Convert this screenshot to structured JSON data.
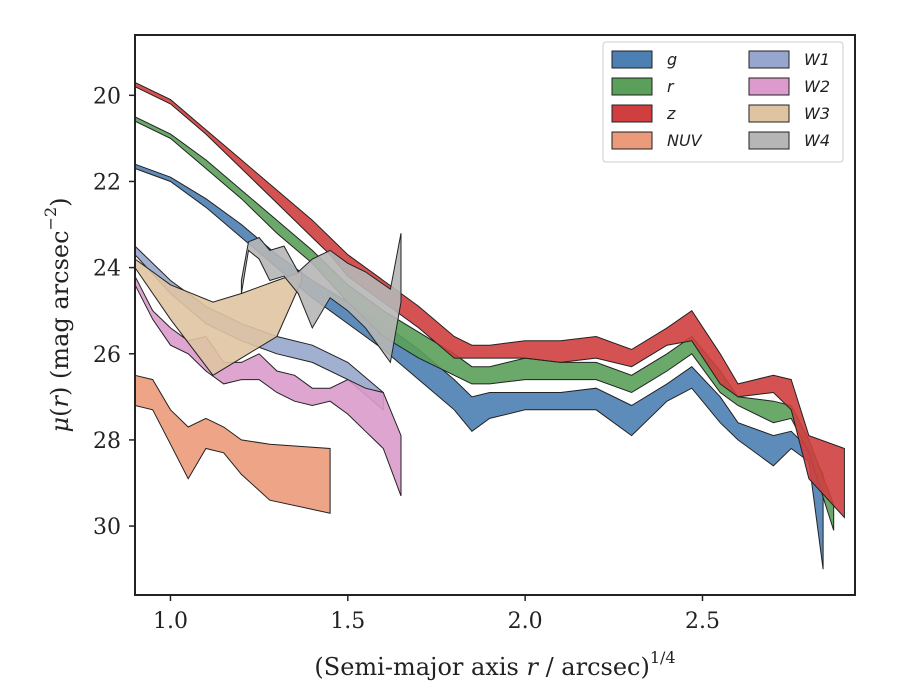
{
  "chart_data": {
    "type": "area",
    "xlabel": "(Semi-major axis r / arcsec)",
    "xlabel_main": "(Semi-major axis ",
    "xlabel_var": "r",
    "xlabel_rest": " / arcsec)",
    "xlabel_sup": "1/4",
    "ylabel_mu": "μ",
    "ylabel_r": "r",
    "ylabel_rest": ") (mag arcsec",
    "ylabel_sup": "−2",
    "ylabel_close": ")",
    "xlim": [
      0.9,
      2.93
    ],
    "ylim": [
      31.6,
      18.6
    ],
    "y_inverted": true,
    "xticks": [
      1.0,
      1.5,
      2.0,
      2.5
    ],
    "xtick_labels": [
      "1.0",
      "1.5",
      "2.0",
      "2.5"
    ],
    "yticks": [
      20,
      22,
      24,
      26,
      28,
      30
    ],
    "ytick_labels": [
      "20",
      "22",
      "24",
      "26",
      "28",
      "30"
    ],
    "grid": false,
    "legend_position": "top-right",
    "legend_columns": 2,
    "series": [
      {
        "name": "g",
        "color": "#4c7fb2",
        "x": [
          0.9,
          1.0,
          1.1,
          1.2,
          1.3,
          1.4,
          1.5,
          1.6,
          1.7,
          1.8,
          1.85,
          1.9,
          2.0,
          2.1,
          2.2,
          2.3,
          2.4,
          2.47,
          2.55,
          2.6,
          2.7,
          2.75,
          2.8,
          2.84
        ],
        "y_upper": [
          21.6,
          21.9,
          22.4,
          23.0,
          23.7,
          24.3,
          24.8,
          25.3,
          25.9,
          26.6,
          27.0,
          26.9,
          26.9,
          26.9,
          26.8,
          27.2,
          26.7,
          26.3,
          27.0,
          27.6,
          27.9,
          27.8,
          28.2,
          28.8
        ],
        "y_lower": [
          21.7,
          22.0,
          22.6,
          23.3,
          24.0,
          24.7,
          25.3,
          25.9,
          26.6,
          27.3,
          27.8,
          27.5,
          27.3,
          27.3,
          27.3,
          27.9,
          27.1,
          26.8,
          27.6,
          28.0,
          28.6,
          28.2,
          28.5,
          31.0
        ]
      },
      {
        "name": "r",
        "color": "#5aa05a",
        "x": [
          0.9,
          1.0,
          1.1,
          1.2,
          1.3,
          1.4,
          1.5,
          1.6,
          1.7,
          1.8,
          1.85,
          1.9,
          2.0,
          2.1,
          2.2,
          2.3,
          2.4,
          2.47,
          2.55,
          2.6,
          2.7,
          2.75,
          2.8,
          2.87
        ],
        "y_upper": [
          20.5,
          20.9,
          21.5,
          22.2,
          22.9,
          23.6,
          24.4,
          25.0,
          25.5,
          26.0,
          26.3,
          26.3,
          26.1,
          26.2,
          26.2,
          26.5,
          26.0,
          25.6,
          26.4,
          27.0,
          27.1,
          27.2,
          28.0,
          29.5
        ],
        "y_lower": [
          20.6,
          21.0,
          21.7,
          22.4,
          23.2,
          23.9,
          24.8,
          25.6,
          26.1,
          26.5,
          26.7,
          26.7,
          26.6,
          26.6,
          26.6,
          26.9,
          26.4,
          26.0,
          26.9,
          27.2,
          27.6,
          27.5,
          28.3,
          30.1
        ]
      },
      {
        "name": "z",
        "color": "#cf3f3f",
        "x": [
          0.9,
          1.0,
          1.1,
          1.2,
          1.3,
          1.4,
          1.45,
          1.5,
          1.6,
          1.7,
          1.8,
          1.85,
          1.9,
          2.0,
          2.1,
          2.2,
          2.3,
          2.4,
          2.47,
          2.55,
          2.6,
          2.7,
          2.75,
          2.8,
          2.9
        ],
        "y_upper": [
          19.7,
          20.1,
          20.8,
          21.5,
          22.2,
          22.9,
          23.3,
          23.7,
          24.3,
          24.9,
          25.6,
          25.8,
          25.8,
          25.7,
          25.7,
          25.6,
          25.9,
          25.4,
          25.0,
          26.0,
          26.7,
          26.5,
          26.6,
          27.9,
          28.2
        ],
        "y_lower": [
          19.8,
          20.2,
          20.9,
          21.7,
          22.5,
          23.3,
          23.7,
          24.2,
          24.8,
          25.4,
          26.1,
          26.1,
          26.1,
          26.1,
          26.2,
          26.1,
          26.3,
          25.8,
          25.7,
          26.7,
          27.0,
          26.9,
          27.3,
          28.9,
          29.8
        ]
      },
      {
        "name": "NUV",
        "color": "#eb9a7a",
        "x": [
          0.9,
          0.95,
          1.0,
          1.05,
          1.1,
          1.15,
          1.2,
          1.28,
          1.45
        ],
        "y_upper": [
          26.5,
          26.6,
          27.3,
          27.7,
          27.5,
          27.7,
          28.0,
          28.1,
          28.2
        ],
        "y_lower": [
          27.2,
          27.3,
          28.1,
          28.9,
          28.2,
          28.3,
          28.8,
          29.4,
          29.7
        ]
      },
      {
        "name": "W1",
        "color": "#97a6cc",
        "x": [
          0.9,
          1.0,
          1.1,
          1.2,
          1.3,
          1.4,
          1.5,
          1.6
        ],
        "y_upper": [
          23.5,
          24.3,
          24.9,
          25.3,
          25.6,
          25.8,
          26.2,
          26.9
        ],
        "y_lower": [
          23.7,
          24.6,
          25.3,
          25.7,
          26.0,
          26.2,
          26.6,
          27.3
        ]
      },
      {
        "name": "W2",
        "color": "#dc9bcc",
        "x": [
          0.9,
          0.95,
          1.0,
          1.05,
          1.1,
          1.15,
          1.2,
          1.25,
          1.3,
          1.35,
          1.4,
          1.45,
          1.5,
          1.55,
          1.6,
          1.65
        ],
        "y_upper": [
          24.2,
          25.0,
          25.4,
          25.7,
          25.6,
          26.2,
          26.2,
          26.0,
          26.4,
          26.5,
          26.8,
          26.8,
          26.6,
          26.8,
          26.9,
          27.9
        ],
        "y_lower": [
          24.4,
          25.2,
          25.8,
          26.0,
          26.4,
          26.7,
          26.6,
          26.6,
          26.9,
          27.1,
          27.2,
          27.1,
          27.4,
          27.8,
          28.2,
          29.3
        ]
      },
      {
        "name": "W3",
        "color": "#dfc4a2",
        "x": [
          0.9,
          1.0,
          1.12,
          1.2,
          1.3,
          1.37
        ],
        "y_upper": [
          23.8,
          24.4,
          24.8,
          24.6,
          24.3,
          24.1
        ],
        "y_lower": [
          24.0,
          25.2,
          26.5,
          26.1,
          25.6,
          24.3
        ]
      },
      {
        "name": "W4",
        "color": "#b6b6b6",
        "x": [
          1.2,
          1.22,
          1.25,
          1.28,
          1.32,
          1.36,
          1.4,
          1.45,
          1.5,
          1.55,
          1.62,
          1.65
        ],
        "y_upper": [
          24.3,
          23.4,
          23.3,
          23.6,
          23.5,
          24.1,
          23.8,
          23.6,
          23.9,
          24.1,
          24.5,
          23.2
        ],
        "y_lower": [
          24.6,
          23.6,
          23.8,
          24.3,
          24.2,
          24.6,
          25.4,
          24.7,
          25.0,
          25.4,
          26.2,
          24.8
        ]
      }
    ]
  }
}
